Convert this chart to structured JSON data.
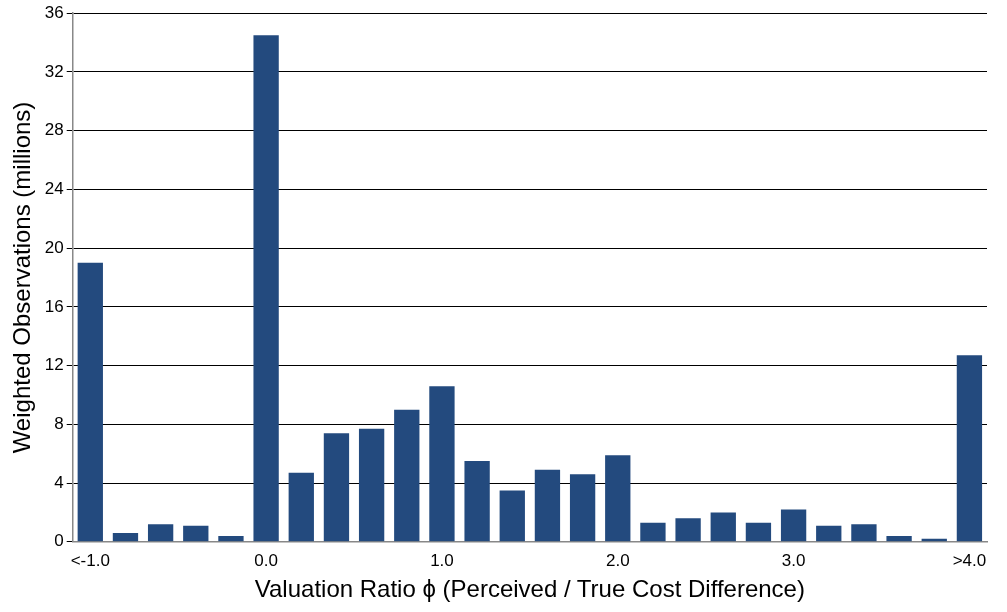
{
  "chart_data": {
    "type": "bar",
    "xlabel": "Valuation Ratio ϕ (Perceived / True Cost Difference)",
    "ylabel": "Weighted Observations (millions)",
    "categories": [
      "<-1.0",
      null,
      null,
      null,
      null,
      "0.0",
      null,
      null,
      null,
      null,
      "1.0",
      null,
      null,
      null,
      null,
      "2.0",
      null,
      null,
      null,
      null,
      "3.0",
      null,
      null,
      null,
      null,
      ">4.0"
    ],
    "values": [
      19.0,
      0.6,
      1.2,
      1.1,
      0.4,
      34.5,
      4.7,
      7.4,
      7.7,
      9.0,
      10.6,
      5.5,
      3.5,
      4.9,
      4.6,
      5.9,
      1.3,
      1.6,
      2.0,
      1.3,
      2.2,
      1.1,
      1.2,
      0.4,
      0.2,
      12.7
    ],
    "color": "#234a7e",
    "ylim": [
      0,
      36
    ],
    "yticks": [
      0,
      4,
      8,
      12,
      16,
      20,
      24,
      28,
      32,
      36
    ],
    "grid": "y",
    "legend": false
  }
}
